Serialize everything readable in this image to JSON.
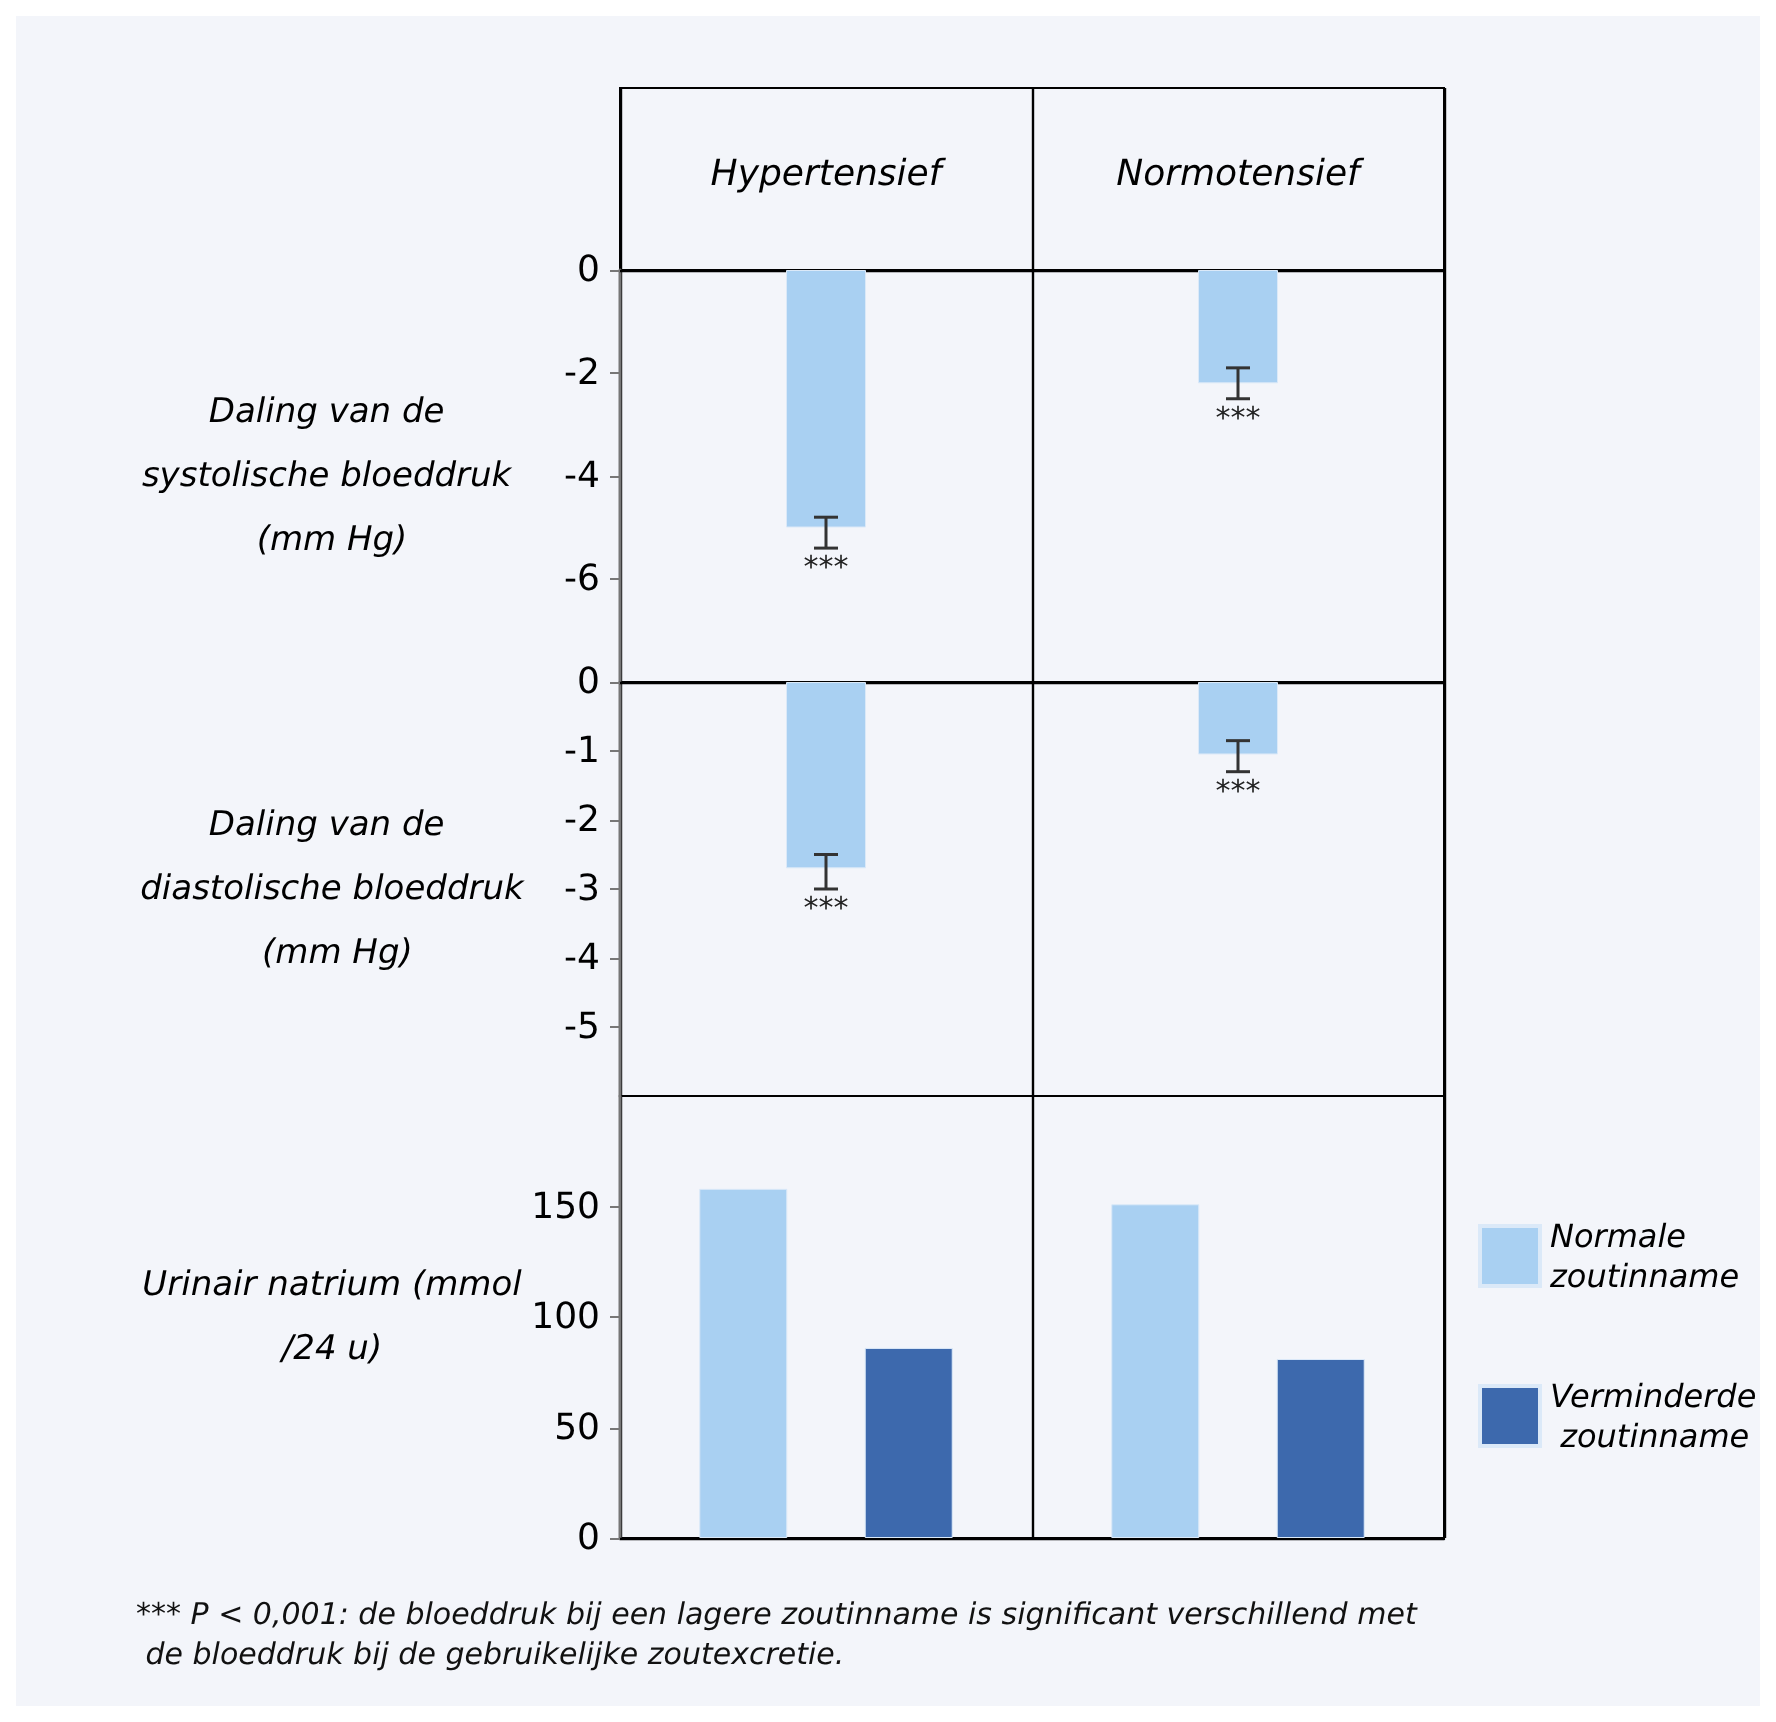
{
  "chart_data": [
    {
      "type": "bar",
      "categories": [
        "Hypertensief",
        "Normotensief"
      ],
      "ylabel": "Daling van de systolische bloeddruk (mm Hg)",
      "values": [
        -5.0,
        -2.2
      ],
      "color": "#a9d0f2",
      "errors": [
        [
          -5.4,
          -4.8
        ],
        [
          -2.5,
          -1.9
        ]
      ],
      "ylim": [
        -8,
        0
      ],
      "yticks": [
        0,
        -2,
        -4,
        -6
      ],
      "grid": "x",
      "annotations": [
        {
          "text": "***",
          "x": "Hypertensief",
          "y": -5.0
        },
        {
          "text": "***",
          "x": "Normotensief",
          "y": -2.2
        }
      ]
    },
    {
      "type": "bar",
      "categories": [
        "Hypertensief",
        "Normotensief"
      ],
      "ylabel": "Daling van de diastolische bloeddruk (mm Hg)",
      "values": [
        -2.7,
        -1.05
      ],
      "color": "#a9d0f2",
      "errors": [
        [
          -3.0,
          -2.5
        ],
        [
          -1.3,
          -0.85
        ]
      ],
      "ylim": [
        -6,
        0
      ],
      "yticks": [
        0,
        -1,
        -2,
        -3,
        -4,
        -5
      ],
      "grid": "x",
      "tick_labels": "y",
      "annotations": [
        {
          "text": "***",
          "x": "Hypertensief",
          "y": -2.7
        },
        {
          "text": "***",
          "x": "Normotensief",
          "y": -1.05
        }
      ]
    },
    {
      "type": "bar",
      "categories": [
        "Hypertensief",
        "Normotensief"
      ],
      "ylabel": "Urinair natrium (mmol/24 u)",
      "ylim": [
        0,
        200
      ],
      "yticks": [
        0,
        50,
        100,
        150
      ],
      "grid": "x",
      "tick_labels": "y",
      "legend": "right",
      "series": [
        {
          "name": "Normale zoutinname",
          "color": "#a9d0f2",
          "values": [
            158,
            151
          ]
        },
        {
          "name": "Verminderde zoutinname",
          "color": "#3d69ad",
          "values": [
            86,
            81
          ]
        }
      ],
      "annotations": [
        "*** P < 0,001: de bloeddruk bij een lagere zoutinname is significant verschillend met de bloeddruk bij de gebruikelijke zoutexcretie."
      ]
    }
  ]
}
